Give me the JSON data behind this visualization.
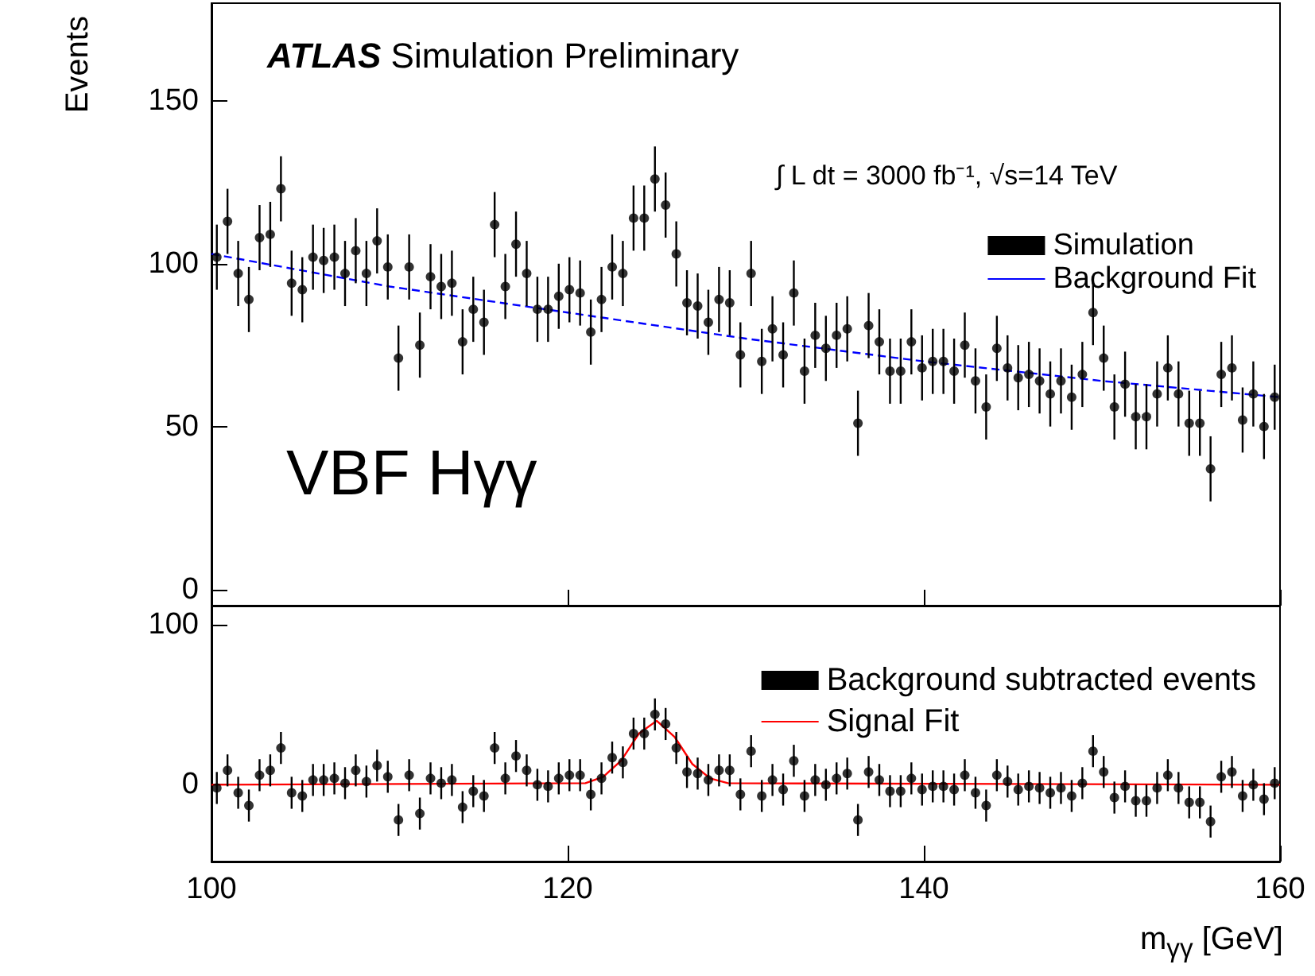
{
  "chart_data": [
    {
      "type": "scatter",
      "ylabel": "Events",
      "annotations": [
        "ATLAS Simulation Preliminary",
        "∫ L dt = 3000 fb⁻¹, √s=14 TeV",
        "VBF Hγγ"
      ],
      "x": [
        100.3,
        100.9,
        101.5,
        102.1,
        102.7,
        103.3,
        103.9,
        104.5,
        105.1,
        105.7,
        106.3,
        106.9,
        107.5,
        108.1,
        108.7,
        109.3,
        109.9,
        110.5,
        111.1,
        111.7,
        112.3,
        112.9,
        113.5,
        114.1,
        114.7,
        115.3,
        115.9,
        116.5,
        117.1,
        117.7,
        118.3,
        118.9,
        119.5,
        120.1,
        120.7,
        121.3,
        121.9,
        122.5,
        123.1,
        123.7,
        124.3,
        124.9,
        125.5,
        126.1,
        126.7,
        127.3,
        127.9,
        128.5,
        129.1,
        129.7,
        130.3,
        130.9,
        131.5,
        132.1,
        132.7,
        133.3,
        133.9,
        134.5,
        135.1,
        135.7,
        136.3,
        136.9,
        137.5,
        138.1,
        138.7,
        139.3,
        139.9,
        140.5,
        141.1,
        141.7,
        142.3,
        142.9,
        143.5,
        144.1,
        144.7,
        145.3,
        145.9,
        146.5,
        147.1,
        147.7,
        148.3,
        148.9,
        149.5,
        150.1,
        150.7,
        151.3,
        151.9,
        152.5,
        153.1,
        153.7,
        154.3,
        154.9,
        155.5,
        156.1,
        156.7,
        157.3,
        157.9,
        158.5,
        159.1,
        159.7
      ],
      "series": [
        {
          "name": "Simulation",
          "type": "scatter",
          "marker": "circle",
          "color": "#000000",
          "values": [
            102,
            113,
            97,
            89,
            108,
            109,
            123,
            94,
            92,
            102,
            101,
            102,
            97,
            104,
            97,
            107,
            99,
            71,
            99,
            75,
            96,
            93,
            94,
            76,
            86,
            82,
            112,
            93,
            106,
            97,
            86,
            86,
            90,
            92,
            91,
            79,
            89,
            99,
            97,
            114,
            114,
            126,
            118,
            103,
            88,
            87,
            82,
            89,
            88,
            72,
            97,
            70,
            80,
            72,
            91,
            67,
            78,
            74,
            78,
            80,
            51,
            81,
            76,
            67,
            67,
            76,
            68,
            70,
            70,
            67,
            75,
            64,
            56,
            74,
            68,
            65,
            66,
            64,
            60,
            64,
            59,
            66,
            85,
            71,
            56,
            63,
            53,
            53,
            60,
            68,
            60,
            51,
            51,
            37,
            66,
            68,
            52,
            60,
            50,
            59
          ],
          "errors": [
            10,
            10,
            10,
            10,
            10,
            10,
            10,
            10,
            10,
            10,
            10,
            10,
            10,
            10,
            10,
            10,
            10,
            10,
            10,
            10,
            10,
            10,
            10,
            10,
            10,
            10,
            10,
            10,
            10,
            10,
            10,
            10,
            10,
            10,
            10,
            10,
            10,
            10,
            10,
            10,
            10,
            10,
            10,
            10,
            10,
            10,
            10,
            10,
            10,
            10,
            10,
            10,
            10,
            10,
            10,
            10,
            10,
            10,
            10,
            10,
            10,
            10,
            10,
            10,
            10,
            10,
            10,
            10,
            10,
            10,
            10,
            10,
            10,
            10,
            10,
            10,
            10,
            10,
            10,
            10,
            10,
            10,
            10,
            10,
            10,
            10,
            10,
            10,
            10,
            10,
            10,
            10,
            10,
            10,
            10,
            10,
            10,
            10,
            10,
            10
          ]
        },
        {
          "name": "Background Fit",
          "type": "line",
          "color": "#0000ff",
          "line_style": "dashed",
          "marker": "none",
          "x": [
            100,
            110,
            120,
            130,
            140,
            150,
            160
          ],
          "values": [
            103,
            93,
            85,
            77,
            70,
            64,
            59
          ]
        }
      ],
      "xlim": [
        100,
        160
      ],
      "xticks": [
        100,
        120,
        140,
        160
      ],
      "ylim": [
        -5,
        180
      ],
      "yticks": [
        0,
        50,
        100,
        150
      ],
      "tick_labels": "y",
      "legend": "top right",
      "grid": false
    },
    {
      "type": "scatter",
      "xlabel": "m$_{γγ}$ [GeV]",
      "x": [
        100.3,
        100.9,
        101.5,
        102.1,
        102.7,
        103.3,
        103.9,
        104.5,
        105.1,
        105.7,
        106.3,
        106.9,
        107.5,
        108.1,
        108.7,
        109.3,
        109.9,
        110.5,
        111.1,
        111.7,
        112.3,
        112.9,
        113.5,
        114.1,
        114.7,
        115.3,
        115.9,
        116.5,
        117.1,
        117.7,
        118.3,
        118.9,
        119.5,
        120.1,
        120.7,
        121.3,
        121.9,
        122.5,
        123.1,
        123.7,
        124.3,
        124.9,
        125.5,
        126.1,
        126.7,
        127.3,
        127.9,
        128.5,
        129.1,
        129.7,
        130.3,
        130.9,
        131.5,
        132.1,
        132.7,
        133.3,
        133.9,
        134.5,
        135.1,
        135.7,
        136.3,
        136.9,
        137.5,
        138.1,
        138.7,
        139.3,
        139.9,
        140.5,
        141.1,
        141.7,
        142.3,
        142.9,
        143.5,
        144.1,
        144.7,
        145.3,
        145.9,
        146.5,
        147.1,
        147.7,
        148.3,
        148.9,
        149.5,
        150.1,
        150.7,
        151.3,
        151.9,
        152.5,
        153.1,
        153.7,
        154.3,
        154.9,
        155.5,
        156.1,
        156.7,
        157.3,
        157.9,
        158.5,
        159.1,
        159.7
      ],
      "series": [
        {
          "name": "Background subtracted events",
          "type": "scatter",
          "marker": "circle",
          "color": "#000000",
          "values": [
            -2,
            9,
            -5,
            -13,
            6,
            9,
            23,
            -5,
            -7,
            3,
            3,
            4,
            1,
            9,
            2,
            12,
            5,
            -22,
            6,
            -18,
            4,
            1,
            3,
            -14,
            -4,
            -7,
            23,
            4,
            18,
            9,
            0,
            -1,
            4,
            6,
            6,
            -6,
            4,
            17,
            14,
            32,
            32,
            44,
            38,
            23,
            8,
            7,
            3,
            9,
            9,
            -6,
            21,
            -7,
            3,
            -3,
            15,
            -7,
            3,
            0,
            4,
            7,
            -22,
            8,
            3,
            -4,
            -4,
            4,
            -3,
            -1,
            -1,
            -3,
            6,
            -5,
            -13,
            6,
            2,
            -3,
            -1,
            -2,
            -5,
            -2,
            -7,
            1,
            21,
            8,
            -8,
            -1,
            -10,
            -10,
            -2,
            6,
            -2,
            -11,
            -11,
            -23,
            5,
            8,
            -7,
            0,
            -9,
            1
          ],
          "errors": [
            10,
            10,
            10,
            10,
            10,
            10,
            10,
            10,
            10,
            10,
            10,
            10,
            10,
            10,
            10,
            10,
            10,
            10,
            10,
            10,
            10,
            10,
            10,
            10,
            10,
            10,
            10,
            10,
            10,
            10,
            10,
            10,
            10,
            10,
            10,
            10,
            10,
            10,
            10,
            10,
            10,
            10,
            10,
            10,
            10,
            10,
            10,
            10,
            10,
            10,
            10,
            10,
            10,
            10,
            10,
            10,
            10,
            10,
            10,
            10,
            10,
            10,
            10,
            10,
            10,
            10,
            10,
            10,
            10,
            10,
            10,
            10,
            10,
            10,
            10,
            10,
            10,
            10,
            10,
            10,
            10,
            10,
            10,
            10,
            10,
            10,
            10,
            10,
            10,
            10,
            10,
            10,
            10,
            10,
            10,
            10,
            10,
            10,
            10,
            10
          ]
        },
        {
          "name": "Signal Fit",
          "type": "line",
          "color": "#ff0000",
          "line_style": "solid",
          "marker": "none",
          "x": [
            100,
            121,
            122,
            123,
            124,
            125,
            126,
            127,
            128,
            129,
            160
          ],
          "values": [
            0,
            1,
            5,
            15,
            32,
            40,
            30,
            13,
            4,
            1,
            0
          ]
        }
      ],
      "xlim": [
        100,
        160
      ],
      "xticks": [
        100,
        120,
        140,
        160
      ],
      "ylim": [
        -48,
        112
      ],
      "yticks": [
        0,
        100
      ],
      "legend": "top right",
      "grid": false
    }
  ]
}
